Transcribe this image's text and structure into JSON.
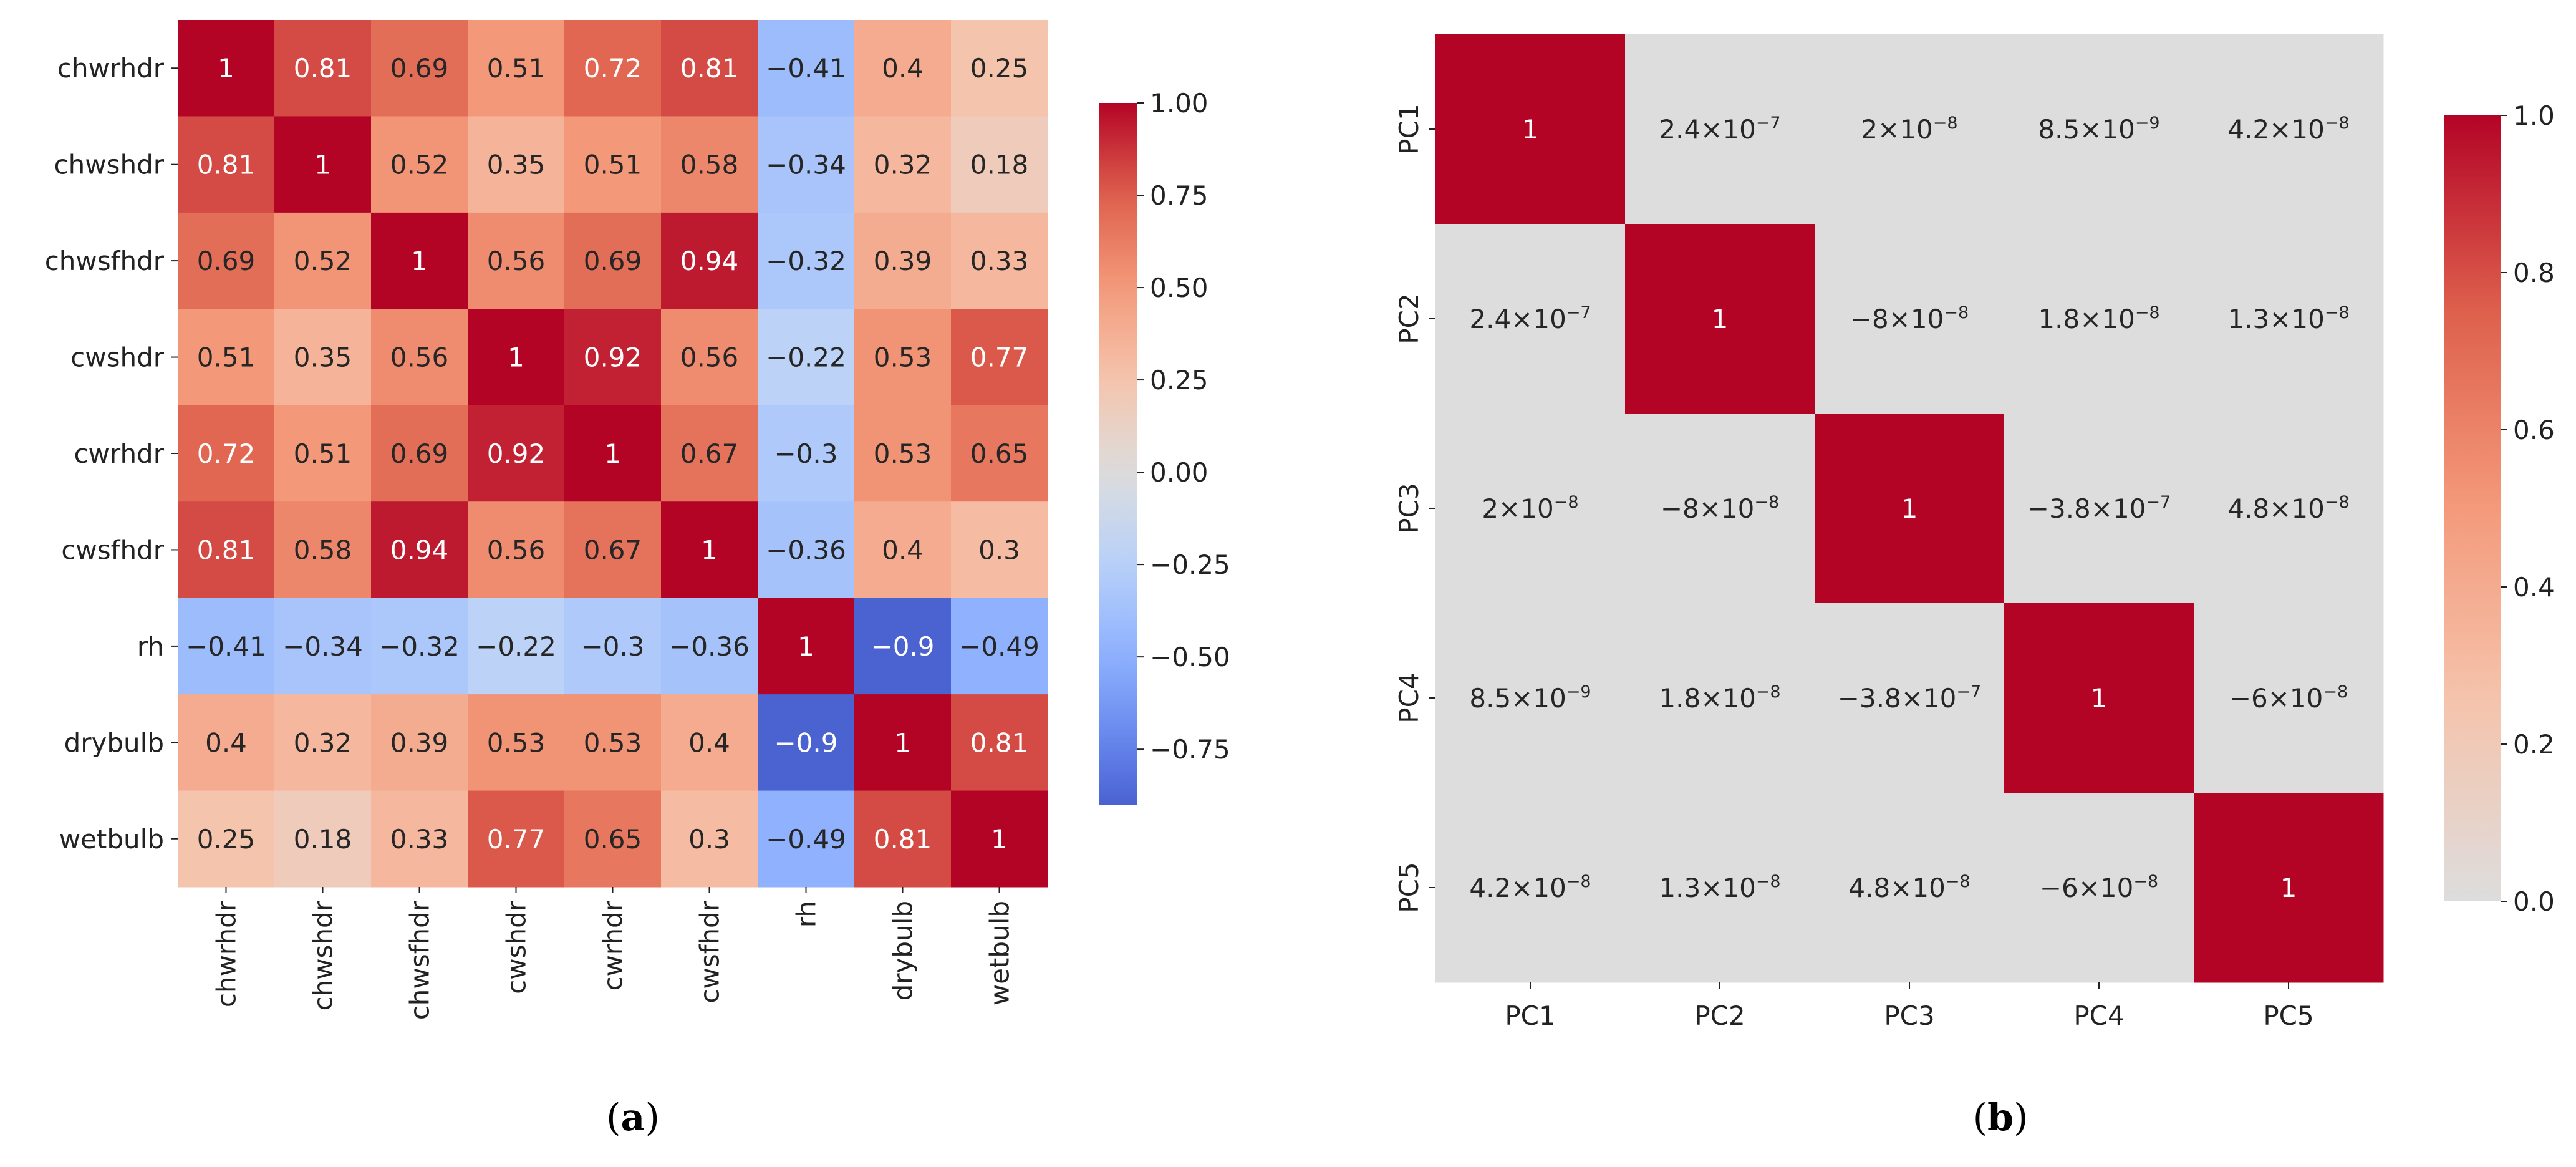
{
  "chart_data": [
    {
      "type": "heatmap",
      "panel": "a",
      "caption_open": "(",
      "caption_letter": "a",
      "caption_close": ")",
      "title": "",
      "x_labels": [
        "chwrhdr",
        "chwshdr",
        "chwsfhdr",
        "cwshdr",
        "cwrhdr",
        "cwsfhdr",
        "rh",
        "drybulb",
        "wetbulb"
      ],
      "y_labels": [
        "chwrhdr",
        "chwshdr",
        "chwsfhdr",
        "cwshdr",
        "cwrhdr",
        "cwsfhdr",
        "rh",
        "drybulb",
        "wetbulb"
      ],
      "values": [
        [
          1,
          0.81,
          0.69,
          0.51,
          0.72,
          0.81,
          -0.41,
          0.4,
          0.25
        ],
        [
          0.81,
          1,
          0.52,
          0.35,
          0.51,
          0.58,
          -0.34,
          0.32,
          0.18
        ],
        [
          0.69,
          0.52,
          1,
          0.56,
          0.69,
          0.94,
          -0.32,
          0.39,
          0.33
        ],
        [
          0.51,
          0.35,
          0.56,
          1,
          0.92,
          0.56,
          -0.22,
          0.53,
          0.77
        ],
        [
          0.72,
          0.51,
          0.69,
          0.92,
          1,
          0.67,
          -0.3,
          0.53,
          0.65
        ],
        [
          0.81,
          0.58,
          0.94,
          0.56,
          0.67,
          1,
          -0.36,
          0.4,
          0.3
        ],
        [
          -0.41,
          -0.34,
          -0.32,
          -0.22,
          -0.3,
          -0.36,
          1,
          -0.9,
          -0.49
        ],
        [
          0.4,
          0.32,
          0.39,
          0.53,
          0.53,
          0.4,
          -0.9,
          1,
          0.81
        ],
        [
          0.25,
          0.18,
          0.33,
          0.77,
          0.65,
          0.3,
          -0.49,
          0.81,
          1
        ]
      ],
      "annotations": [
        [
          "1",
          "0.81",
          "0.69",
          "0.51",
          "0.72",
          "0.81",
          "−0.41",
          "0.4",
          "0.25"
        ],
        [
          "0.81",
          "1",
          "0.52",
          "0.35",
          "0.51",
          "0.58",
          "−0.34",
          "0.32",
          "0.18"
        ],
        [
          "0.69",
          "0.52",
          "1",
          "0.56",
          "0.69",
          "0.94",
          "−0.32",
          "0.39",
          "0.33"
        ],
        [
          "0.51",
          "0.35",
          "0.56",
          "1",
          "0.92",
          "0.56",
          "−0.22",
          "0.53",
          "0.77"
        ],
        [
          "0.72",
          "0.51",
          "0.69",
          "0.92",
          "1",
          "0.67",
          "−0.3",
          "0.53",
          "0.65"
        ],
        [
          "0.81",
          "0.58",
          "0.94",
          "0.56",
          "0.67",
          "1",
          "−0.36",
          "0.4",
          "0.3"
        ],
        [
          "−0.41",
          "−0.34",
          "−0.32",
          "−0.22",
          "−0.3",
          "−0.36",
          "1",
          "−0.9",
          "−0.49"
        ],
        [
          "0.4",
          "0.32",
          "0.39",
          "0.53",
          "0.53",
          "0.4",
          "−0.9",
          "1",
          "0.81"
        ],
        [
          "0.25",
          "0.18",
          "0.33",
          "0.77",
          "0.65",
          "0.3",
          "−0.49",
          "0.81",
          "1"
        ]
      ],
      "colormap": "coolwarm",
      "colormap_center": 0,
      "colorbar": {
        "range": [
          -0.9,
          1.0
        ],
        "ticks": [
          1.0,
          0.75,
          0.5,
          0.25,
          0.0,
          -0.25,
          -0.5,
          -0.75
        ],
        "tick_labels": [
          "1.00",
          "0.75",
          "0.50",
          "0.25",
          "0.00",
          "−0.25",
          "−0.50",
          "−0.75"
        ],
        "placement": "right"
      }
    },
    {
      "type": "heatmap",
      "panel": "b",
      "caption_open": "(",
      "caption_letter": "b",
      "caption_close": ")",
      "title": "",
      "x_labels": [
        "PC1",
        "PC2",
        "PC3",
        "PC4",
        "PC5"
      ],
      "y_labels": [
        "PC1",
        "PC2",
        "PC3",
        "PC4",
        "PC5"
      ],
      "values": [
        [
          1,
          2.4e-07,
          2e-08,
          8.5e-09,
          4.2e-08
        ],
        [
          2.4e-07,
          1,
          -8e-08,
          1.8e-08,
          1.3e-08
        ],
        [
          2e-08,
          -8e-08,
          1,
          -3.8e-07,
          4.8e-08
        ],
        [
          8.5e-09,
          1.8e-08,
          -3.8e-07,
          1,
          -6e-08
        ],
        [
          4.2e-08,
          1.3e-08,
          4.8e-08,
          -6e-08,
          1
        ]
      ],
      "annotations": [
        [
          {
            "m": "1"
          },
          {
            "m": "2.4",
            "e": "−7"
          },
          {
            "m": "2",
            "e": "−8"
          },
          {
            "m": "8.5",
            "e": "−9"
          },
          {
            "m": "4.2",
            "e": "−8"
          }
        ],
        [
          {
            "m": "2.4",
            "e": "−7"
          },
          {
            "m": "1"
          },
          {
            "m": "−8",
            "e": "−8"
          },
          {
            "m": "1.8",
            "e": "−8"
          },
          {
            "m": "1.3",
            "e": "−8"
          }
        ],
        [
          {
            "m": "2",
            "e": "−8"
          },
          {
            "m": "−8",
            "e": "−8"
          },
          {
            "m": "1"
          },
          {
            "m": "−3.8",
            "e": "−7"
          },
          {
            "m": "4.8",
            "e": "−8"
          }
        ],
        [
          {
            "m": "8.5",
            "e": "−9"
          },
          {
            "m": "1.8",
            "e": "−8"
          },
          {
            "m": "−3.8",
            "e": "−7"
          },
          {
            "m": "1"
          },
          {
            "m": "−6",
            "e": "−8"
          }
        ],
        [
          {
            "m": "4.2",
            "e": "−8"
          },
          {
            "m": "1.3",
            "e": "−8"
          },
          {
            "m": "4.8",
            "e": "−8"
          },
          {
            "m": "−6",
            "e": "−8"
          },
          {
            "m": "1"
          }
        ]
      ],
      "times_symbol": "×10",
      "colormap": "coolwarm",
      "colormap_center": 0,
      "colorbar": {
        "range": [
          0.0,
          1.0
        ],
        "ticks": [
          1.0,
          0.8,
          0.6,
          0.4,
          0.2,
          0.0
        ],
        "tick_labels": [
          "1.0",
          "0.8",
          "0.6",
          "0.4",
          "0.2",
          "0.0"
        ],
        "placement": "right"
      }
    }
  ]
}
